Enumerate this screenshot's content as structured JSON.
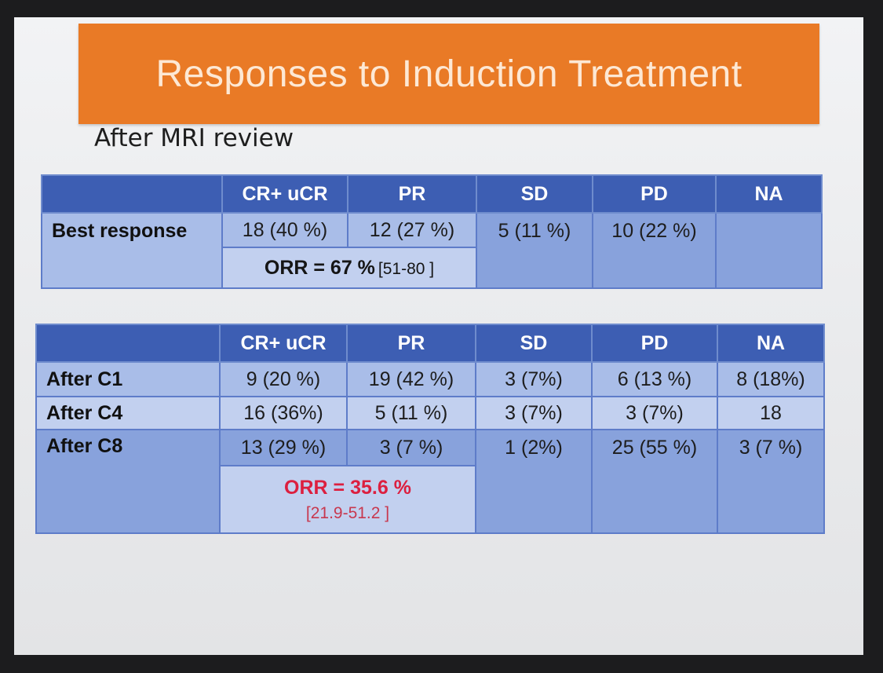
{
  "slide": {
    "title": "Responses to Induction Treatment",
    "subtitle": "After MRI review"
  },
  "table1": {
    "headers": [
      "",
      "CR+ uCR",
      "PR",
      "SD",
      "PD",
      "NA"
    ],
    "row": {
      "label": "Best response",
      "cells": [
        "18 (40 %)",
        "12 (27 %)",
        "5 (11 %)",
        "10 (22 %)",
        ""
      ]
    },
    "orr": {
      "text": "ORR = 67 %",
      "ci": "[51-80 ]"
    }
  },
  "table2": {
    "headers": [
      "",
      "CR+ uCR",
      "PR",
      "SD",
      "PD",
      "NA"
    ],
    "rows": [
      {
        "label": "After C1",
        "cells": [
          "9 (20 %)",
          "19 (42 %)",
          "3 (7%)",
          "6 (13 %)",
          "8 (18%)"
        ]
      },
      {
        "label": "After C4",
        "cells": [
          "16 (36%)",
          "5 (11 %)",
          "3 (7%)",
          "3 (7%)",
          "18"
        ]
      },
      {
        "label": "After C8",
        "cells": [
          "13 (29 %)",
          "3 (7  %)",
          "1 (2%)",
          "25 (55 %)",
          "3 (7 %)"
        ]
      }
    ],
    "orr": {
      "text": "ORR = 35.6 %",
      "ci": "[21.9-51.2 ]"
    }
  },
  "colors": {
    "title_bar": "#e97a26",
    "header": "#3d5eb3",
    "cell_light": "#a9bde8",
    "cell_mid": "#88a2dc",
    "orr_red": "#dc1f3f"
  }
}
